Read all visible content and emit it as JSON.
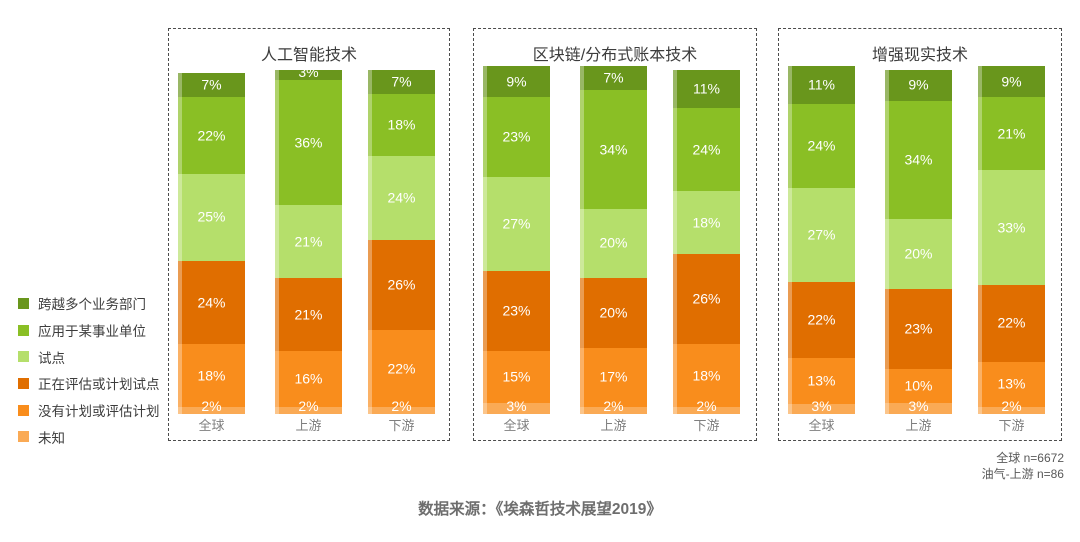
{
  "legend": {
    "items": [
      {
        "label": "跨越多个业务部门",
        "color": "#69961C"
      },
      {
        "label": "应用于某事业单位",
        "color": "#8ABF25"
      },
      {
        "label": "试点",
        "color": "#B5DF6B"
      },
      {
        "label": "正在评估或计划试点",
        "color": "#E06E00"
      },
      {
        "label": "没有计划或评估计划",
        "color": "#F98D1C"
      },
      {
        "label": "未知",
        "color": "#FAAA55"
      }
    ]
  },
  "chart_data": [
    {
      "type": "bar",
      "stacked": true,
      "title": "人工智能技术",
      "unit": "%",
      "categories": [
        "全球",
        "上游",
        "下游"
      ],
      "series": [
        {
          "name": "跨越多个业务部门",
          "color": "#69961C",
          "values": [
            7,
            3,
            7
          ]
        },
        {
          "name": "应用于某事业单位",
          "color": "#8ABF25",
          "values": [
            22,
            36,
            18
          ]
        },
        {
          "name": "试点",
          "color": "#B5DF6B",
          "values": [
            25,
            21,
            24
          ]
        },
        {
          "name": "正在评估或计划试点",
          "color": "#E06E00",
          "values": [
            24,
            21,
            26
          ]
        },
        {
          "name": "没有计划或评估计划",
          "color": "#F98D1C",
          "values": [
            18,
            16,
            22
          ]
        },
        {
          "name": "未知",
          "color": "#FAAA55",
          "values": [
            2,
            2,
            2
          ]
        }
      ]
    },
    {
      "type": "bar",
      "stacked": true,
      "title": "区块链/分布式账本技术",
      "unit": "%",
      "categories": [
        "全球",
        "上游",
        "下游"
      ],
      "series": [
        {
          "name": "跨越多个业务部门",
          "color": "#69961C",
          "values": [
            9,
            7,
            11
          ]
        },
        {
          "name": "应用于某事业单位",
          "color": "#8ABF25",
          "values": [
            23,
            34,
            24
          ]
        },
        {
          "name": "试点",
          "color": "#B5DF6B",
          "values": [
            27,
            20,
            18
          ]
        },
        {
          "name": "正在评估或计划试点",
          "color": "#E06E00",
          "values": [
            23,
            20,
            26
          ]
        },
        {
          "name": "没有计划或评估计划",
          "color": "#F98D1C",
          "values": [
            15,
            17,
            18
          ]
        },
        {
          "name": "未知",
          "color": "#FAAA55",
          "values": [
            3,
            2,
            2
          ]
        }
      ]
    },
    {
      "type": "bar",
      "stacked": true,
      "title": "增强现实技术",
      "unit": "%",
      "categories": [
        "全球",
        "上游",
        "下游"
      ],
      "series": [
        {
          "name": "跨越多个业务部门",
          "color": "#69961C",
          "values": [
            11,
            9,
            9
          ]
        },
        {
          "name": "应用于某事业单位",
          "color": "#8ABF25",
          "values": [
            24,
            34,
            21
          ]
        },
        {
          "name": "试点",
          "color": "#B5DF6B",
          "values": [
            27,
            20,
            33
          ]
        },
        {
          "name": "正在评估或计划试点",
          "color": "#E06E00",
          "values": [
            22,
            23,
            22
          ]
        },
        {
          "name": "没有计划或评估计划",
          "color": "#F98D1C",
          "values": [
            13,
            10,
            13
          ]
        },
        {
          "name": "未知",
          "color": "#FAAA55",
          "values": [
            3,
            3,
            2
          ]
        }
      ]
    }
  ],
  "annotation": {
    "line1": "全球 n=6672",
    "line2": "油气-上游 n=86"
  },
  "footer": {
    "source": "数据来源：《埃森哲技术展望2019》"
  }
}
